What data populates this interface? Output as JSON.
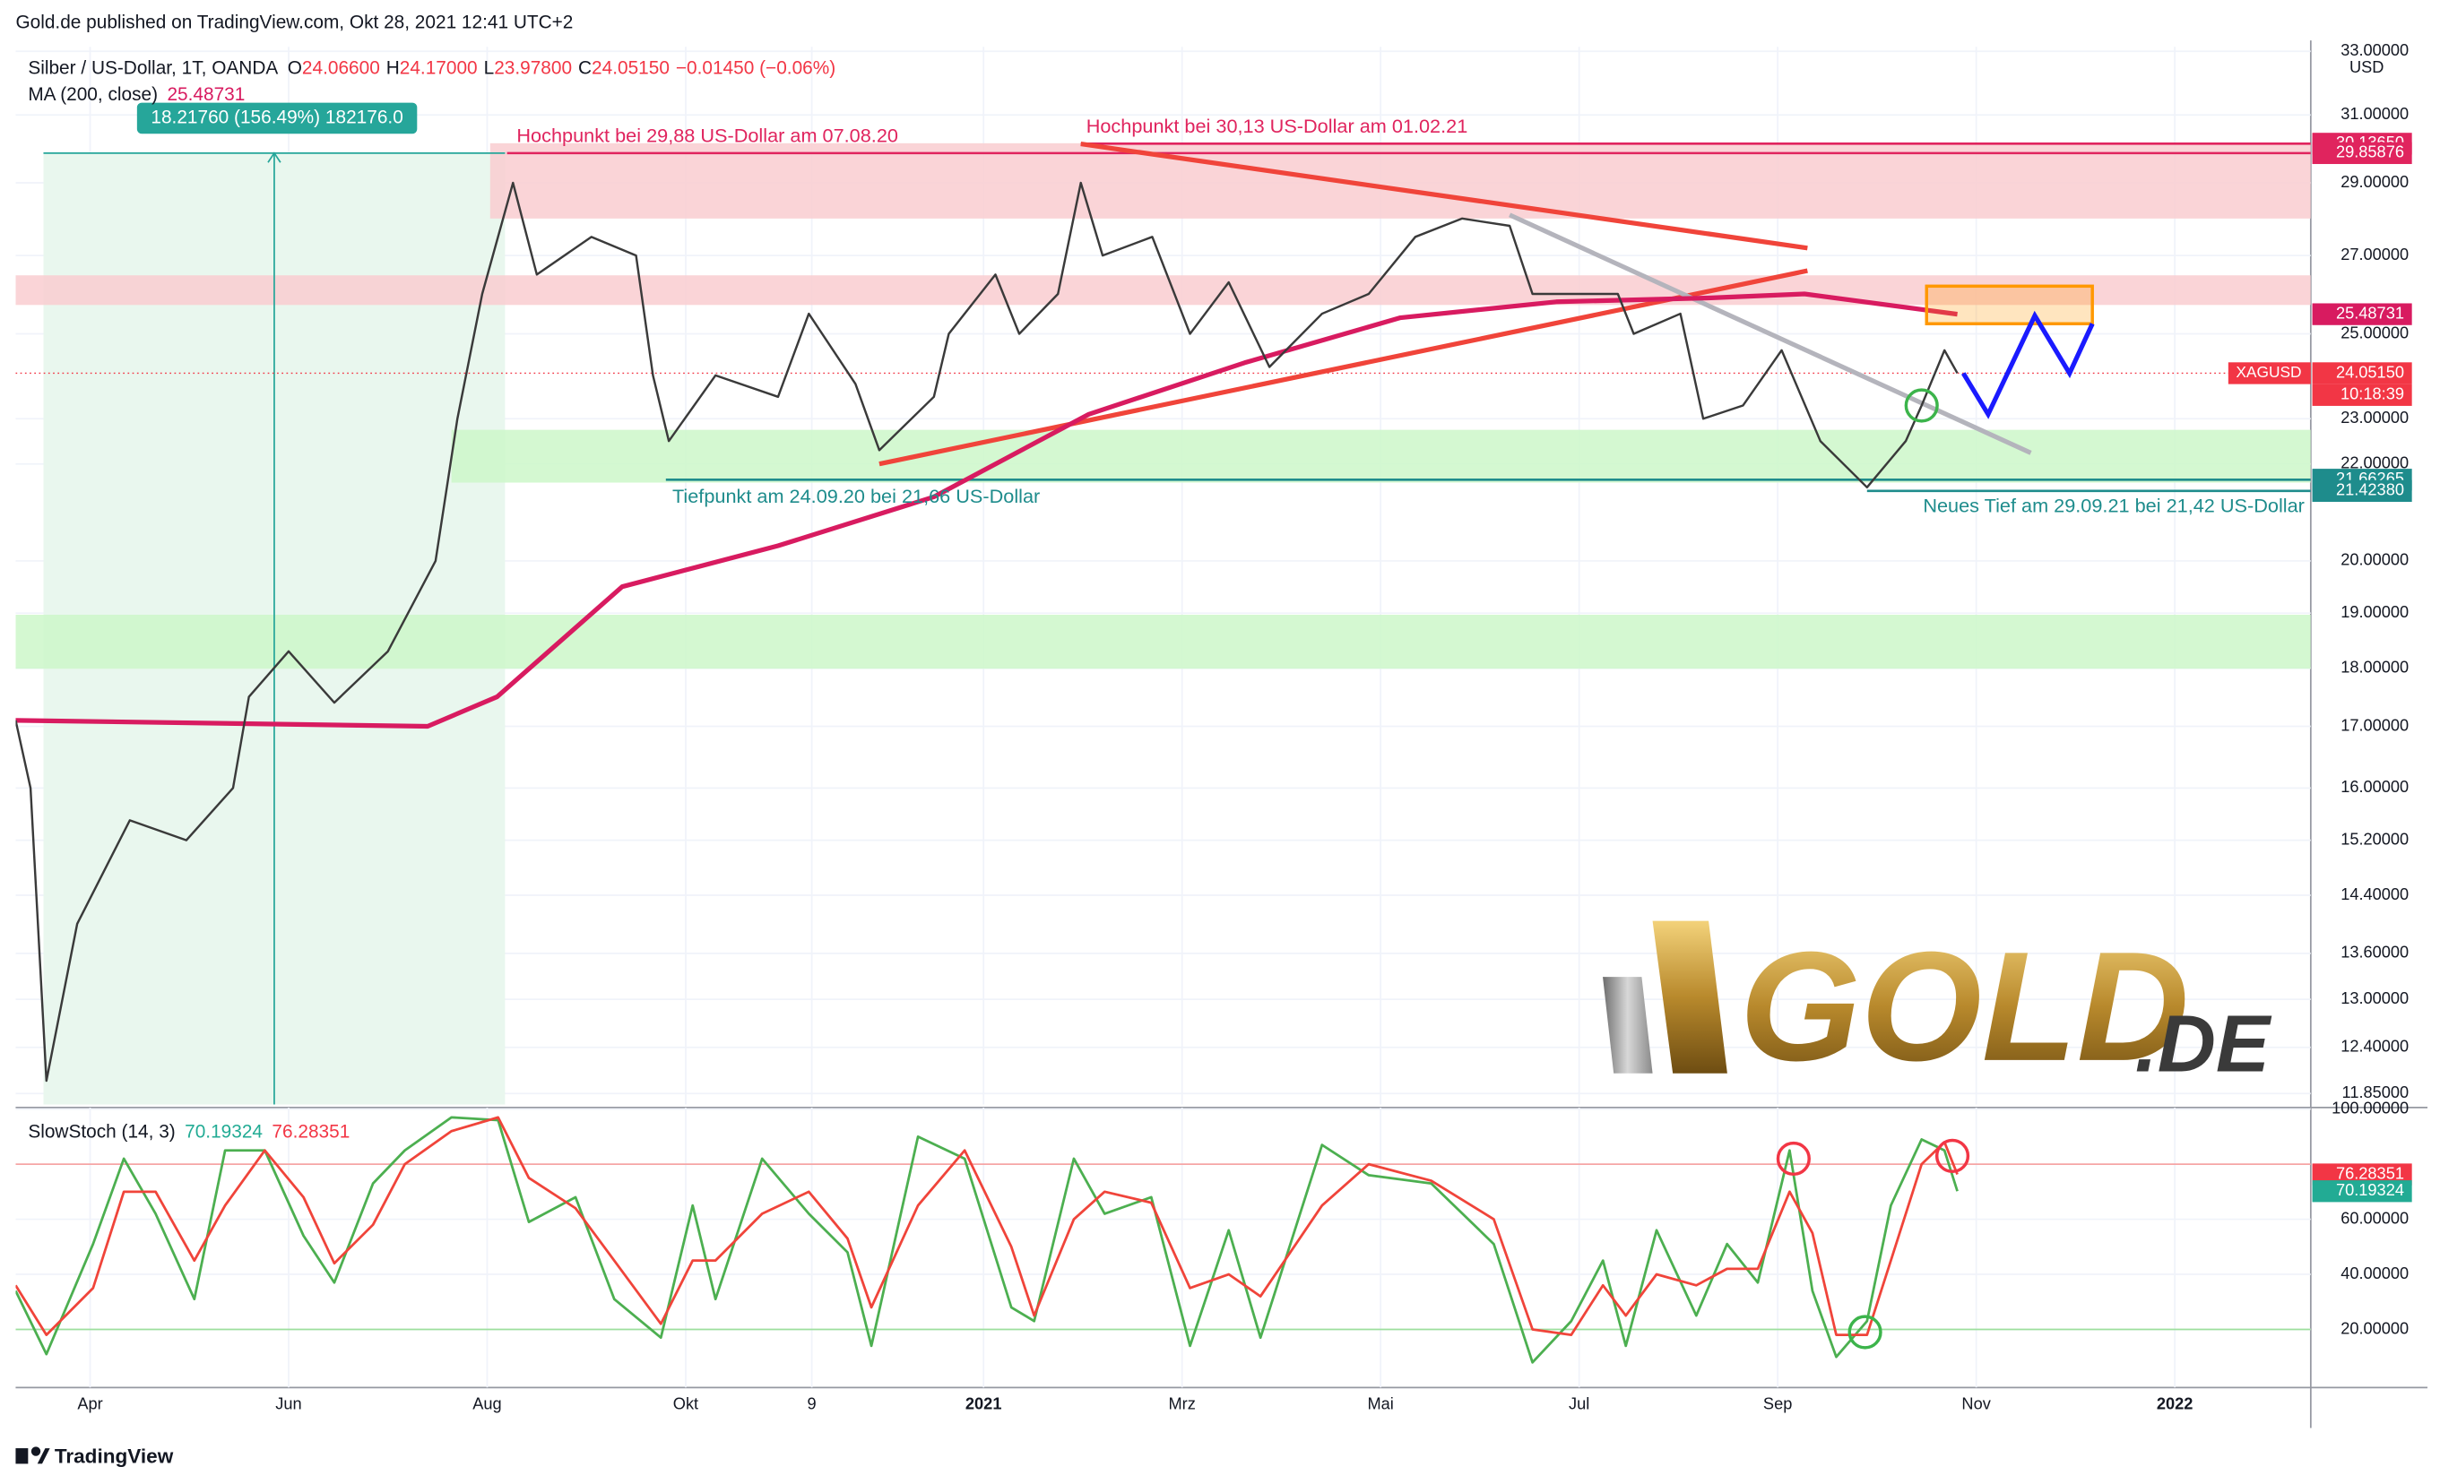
{
  "header": {
    "published": "Gold.de published on TradingView.com, Okt 28, 2021 12:41 UTC+2",
    "footer": "TradingView"
  },
  "chart_data": [
    {
      "type": "line",
      "title": "Silber / US-Dollar, 1T, OANDA",
      "ohlc": [
        [
          "O",
          "24.06600"
        ],
        [
          "H",
          "24.17000"
        ],
        [
          "L",
          "23.97800"
        ],
        [
          "C",
          "24.05150"
        ]
      ],
      "change": "−0.01450 (−0.06%)",
      "log_scale": true,
      "axis_unit": "USD",
      "symbol": "XAGUSD",
      "countdown": "10:18:39",
      "xlim": [
        2.25,
        25.37
      ],
      "ylim": [
        11.85,
        33
      ],
      "yticks": [
        {
          "value": 33,
          "label": "33.00000"
        },
        {
          "value": 31,
          "label": "31.00000"
        },
        {
          "value": 29,
          "label": "29.00000"
        },
        {
          "value": 27,
          "label": "27.00000"
        },
        {
          "value": 25,
          "label": "25.00000"
        },
        {
          "value": 23,
          "label": "23.00000"
        },
        {
          "value": 22,
          "label": "22.00000"
        },
        {
          "value": 20,
          "label": "20.00000"
        },
        {
          "value": 19,
          "label": "19.00000"
        },
        {
          "value": 18,
          "label": "18.00000"
        },
        {
          "value": 17,
          "label": "17.00000"
        },
        {
          "value": 16,
          "label": "16.00000"
        },
        {
          "value": 15.2,
          "label": "15.20000"
        },
        {
          "value": 14.4,
          "label": "14.40000"
        },
        {
          "value": 13.6,
          "label": "13.60000"
        },
        {
          "value": 13,
          "label": "13.00000"
        },
        {
          "value": 12.4,
          "label": "12.40000"
        },
        {
          "value": 11.85,
          "label": "11.85000"
        }
      ],
      "series": [
        {
          "color": "#3a3a3a",
          "x": [
            2.25,
            2.4,
            2.56,
            2.87,
            3.4,
            3.97,
            4.44,
            4.6,
            5.0,
            5.46,
            6.0,
            6.48,
            6.7,
            6.95,
            7.26,
            7.5,
            8.05,
            8.5,
            8.67,
            8.83,
            9.3,
            9.93,
            10.24,
            10.71,
            10.95,
            11.5,
            11.65,
            12.12,
            12.36,
            12.75,
            12.98,
            13.2,
            13.7,
            14.08,
            14.47,
            14.88,
            15.41,
            15.88,
            16.35,
            16.82,
            17.3,
            17.53,
            18.39,
            18.55,
            19.02,
            19.25,
            19.65,
            20.04,
            20.43,
            20.9,
            21.29,
            21.45,
            21.68,
            21.81
          ],
          "values": [
            17.1,
            16.0,
            12.0,
            14.0,
            15.5,
            15.2,
            16.0,
            17.5,
            18.3,
            17.4,
            18.3,
            20.0,
            23.0,
            26.0,
            29.0,
            26.5,
            27.5,
            27.0,
            24.0,
            22.5,
            24.0,
            23.5,
            25.5,
            23.8,
            22.3,
            23.5,
            25.0,
            26.5,
            25.0,
            26.0,
            29.0,
            27.0,
            27.5,
            25.0,
            26.3,
            24.2,
            25.5,
            26.0,
            27.5,
            28.0,
            27.8,
            26.0,
            26.0,
            25.0,
            25.5,
            23.0,
            23.3,
            24.6,
            22.5,
            21.5,
            22.5,
            23.3,
            24.6,
            24.0515
          ]
        },
        {
          "name": "MA (200, close)",
          "color": "#d81b60",
          "x": [
            2.25,
            6.4,
            7.1,
            8.36,
            9.93,
            11.5,
            13.06,
            14.63,
            16.2,
            17.77,
            19.33,
            20.27,
            21.81
          ],
          "values": [
            17.1,
            17.0,
            17.5,
            19.5,
            20.3,
            21.3,
            23.1,
            24.3,
            25.4,
            25.8,
            25.9,
            26.0,
            25.48731
          ]
        }
      ],
      "zones": [
        {
          "x": [
            7.03,
            25.37
          ],
          "y": [
            28.0,
            30.15
          ],
          "color": "#f9cdd0"
        },
        {
          "x": [
            2.25,
            25.37
          ],
          "y": [
            25.72,
            26.48
          ],
          "color": "#f9cdd0"
        },
        {
          "x": [
            6.64,
            25.37
          ],
          "y": [
            21.6,
            22.75
          ],
          "color": "#ccf7c9"
        },
        {
          "x": [
            2.25,
            25.37
          ],
          "y": [
            17.99,
            18.97
          ],
          "color": "#ccf7c9"
        }
      ],
      "trendlines": [
        {
          "x": [
            12.98,
            20.3
          ],
          "y": [
            30.13,
            27.2
          ],
          "color": "#f0443a"
        },
        {
          "x": [
            10.95,
            20.3
          ],
          "y": [
            22.0,
            26.6
          ],
          "color": "#f0443a"
        },
        {
          "x": [
            17.3,
            22.55
          ],
          "y": [
            28.1,
            22.24
          ],
          "color": "#b4b4bc"
        }
      ],
      "target_box": {
        "x": [
          21.5,
          23.17
        ],
        "y": [
          25.25,
          26.2
        ],
        "color": "#ff9800"
      },
      "forecast": {
        "color": "#1a1aff",
        "x": [
          21.87,
          22.12,
          22.59,
          22.94,
          23.17
        ],
        "values": [
          24.05,
          23.1,
          25.45,
          24.05,
          25.25
        ]
      },
      "circles": [
        {
          "x": 21.45,
          "y": 23.3,
          "color": "#3cb44b"
        }
      ],
      "price_labels": [
        {
          "value": 30.1365,
          "label": "30.13650",
          "color": "#e0245e",
          "line_from": 12.98
        },
        {
          "value": 29.85876,
          "label": "29.85876",
          "color": "#e0245e",
          "line_from": 7.2
        },
        {
          "value": 25.48731,
          "label": "25.48731",
          "color": "#d81b60"
        },
        {
          "value": 24.0515,
          "label": "24.05150",
          "color": "#f23645",
          "line_from": 2.25
        },
        {
          "value": 21.66265,
          "label": "21.66265",
          "color": "#1e8c8c",
          "line_from": 8.8
        },
        {
          "value": 21.4238,
          "label": "21.42380",
          "color": "#1e8c8c",
          "line_from": 20.9
        }
      ],
      "annotations": [
        {
          "text": "Hochpunkt bei 29,88 US-Dollar am 07.08.20",
          "color": "#e0245e"
        },
        {
          "text": "Hochpunkt bei 30,13 US-Dollar am 01.02.21",
          "color": "#e0245e"
        },
        {
          "text": "Tiefpunkt am 24.09.20 bei 21,66 US-Dollar",
          "color": "#1e8c8c"
        },
        {
          "text": "Neues Tief am 29.09.21 bei 21,42 US-Dollar",
          "color": "#1e8c8c"
        }
      ],
      "measure": {
        "label": "18.21760 (156.49%) 182176.0",
        "x": [
          2.53,
          7.18
        ],
        "y": [
          11.64,
          29.86
        ],
        "color": "#26a69a"
      },
      "watermark": [
        "GOLD",
        ".DE"
      ]
    },
    {
      "type": "line",
      "title": "SlowStoch (14, 3)",
      "xlim": [
        2.25,
        25.37
      ],
      "xticks": [
        {
          "value": 3,
          "label": "Apr"
        },
        {
          "value": 5,
          "label": "Jun"
        },
        {
          "value": 7,
          "label": "Aug"
        },
        {
          "value": 9,
          "label": "Okt"
        },
        {
          "value": 10.27,
          "label": "9"
        },
        {
          "value": 12,
          "label": "2021"
        },
        {
          "value": 14,
          "label": "Mrz"
        },
        {
          "value": 16,
          "label": "Mai"
        },
        {
          "value": 18,
          "label": "Jul"
        },
        {
          "value": 20,
          "label": "Sep"
        },
        {
          "value": 22,
          "label": "Nov"
        },
        {
          "value": 24,
          "label": "2022"
        }
      ],
      "ylim": [
        0,
        100
      ],
      "yticks": [
        {
          "value": 20,
          "label": "20.00000"
        },
        {
          "value": 40,
          "label": "40.00000"
        },
        {
          "value": 60,
          "label": "60.00000"
        },
        {
          "value": 100,
          "label": "100.00000"
        }
      ],
      "bands": [
        20,
        80
      ],
      "series": [
        {
          "color": "#4caf50",
          "x": [
            2.25,
            2.56,
            3.03,
            3.34,
            3.66,
            4.05,
            4.36,
            4.76,
            5.15,
            5.46,
            5.85,
            6.17,
            6.64,
            7.11,
            7.42,
            7.89,
            8.28,
            8.75,
            9.07,
            9.3,
            9.77,
            10.24,
            10.63,
            10.87,
            11.34,
            11.81,
            12.28,
            12.51,
            12.91,
            13.22,
            13.69,
            14.08,
            14.47,
            14.79,
            15.41,
            15.88,
            16.51,
            17.14,
            17.53,
            17.92,
            18.24,
            18.47,
            18.78,
            19.18,
            19.49,
            19.8,
            20.12,
            20.35,
            20.59,
            20.9,
            21.14,
            21.45,
            21.68,
            21.81
          ],
          "values": [
            34,
            11,
            51,
            82,
            62,
            31,
            85,
            85,
            54,
            37,
            73,
            85,
            97,
            96,
            59,
            68,
            31,
            17,
            65,
            31,
            82,
            62,
            48,
            14,
            90,
            82,
            28,
            23,
            82,
            62,
            68,
            14,
            56,
            17,
            87,
            76,
            73,
            51,
            8,
            23,
            45,
            14,
            56,
            25,
            51,
            37,
            85,
            34,
            10,
            23,
            65,
            89,
            85,
            70.19324
          ]
        },
        {
          "color": "#f0443a",
          "x": [
            2.25,
            2.56,
            3.03,
            3.34,
            3.66,
            4.05,
            4.36,
            4.76,
            5.15,
            5.46,
            5.85,
            6.17,
            6.64,
            7.11,
            7.42,
            7.89,
            8.28,
            8.75,
            9.07,
            9.3,
            9.77,
            10.24,
            10.63,
            10.87,
            11.34,
            11.81,
            12.28,
            12.51,
            12.91,
            13.22,
            13.69,
            14.08,
            14.47,
            14.79,
            15.41,
            15.88,
            16.51,
            17.14,
            17.53,
            17.92,
            18.24,
            18.47,
            18.78,
            19.18,
            19.49,
            19.8,
            20.12,
            20.35,
            20.59,
            20.9,
            21.14,
            21.45,
            21.68,
            21.81
          ],
          "values": [
            36,
            18,
            35,
            70,
            70,
            45,
            65,
            85,
            68,
            44,
            58,
            80,
            92,
            97,
            75,
            64,
            45,
            22,
            45,
            45,
            62,
            70,
            53,
            28,
            65,
            85,
            50,
            25,
            60,
            70,
            66,
            35,
            40,
            32,
            65,
            80,
            74,
            60,
            20,
            18,
            36,
            25,
            40,
            36,
            42,
            42,
            70,
            55,
            18,
            18,
            45,
            80,
            88,
            76.28351
          ]
        }
      ],
      "circles": [
        {
          "x": 20.16,
          "y": 82,
          "color": "#f23645"
        },
        {
          "x": 21.76,
          "y": 83,
          "color": "#f23645"
        },
        {
          "x": 20.88,
          "y": 19,
          "color": "#3cb44b"
        }
      ]
    }
  ]
}
